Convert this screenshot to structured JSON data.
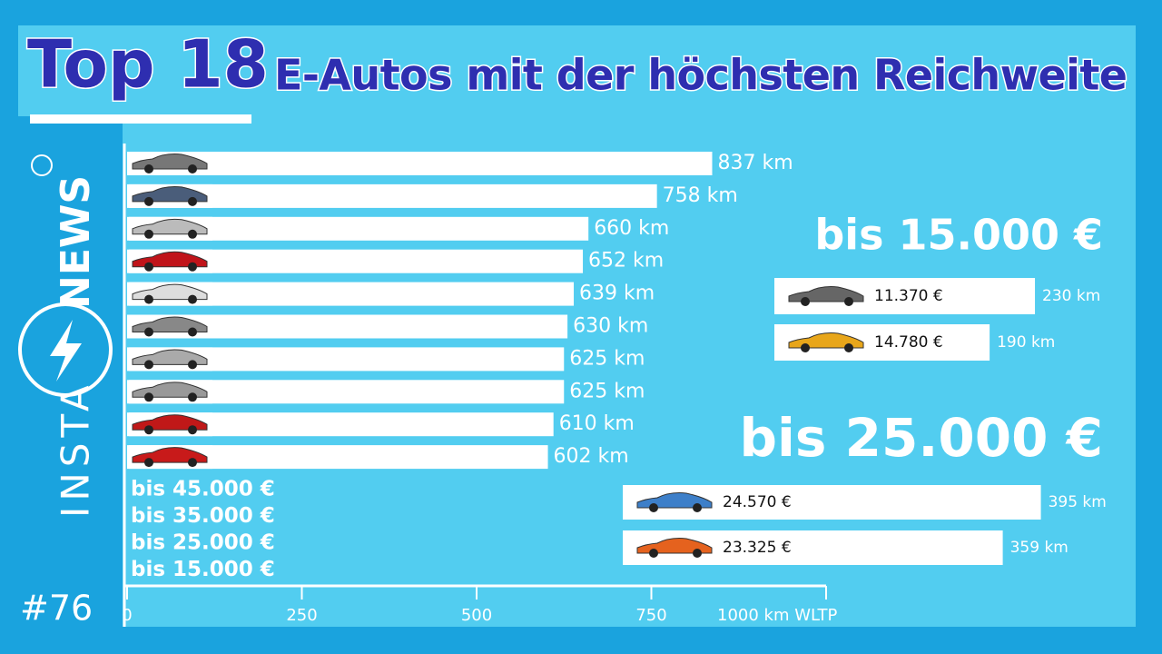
{
  "brand": {
    "name1": "INSTA",
    "name2": "NEWS",
    "episode": "#76"
  },
  "chart_data": {
    "type": "bar",
    "orientation": "horizontal",
    "title": "Top 18",
    "subtitle": "E-Autos mit der höchsten Reichweite",
    "values": [
      837,
      758,
      660,
      652,
      639,
      630,
      625,
      625,
      610,
      602
    ],
    "value_labels": [
      "837 km",
      "758 km",
      "660 km",
      "652 km",
      "639 km",
      "630 km",
      "625 km",
      "625 km",
      "610 km",
      "602 km"
    ],
    "color": "#ffffff",
    "xlim": [
      0,
      1000
    ],
    "xticks": [
      0,
      250,
      500,
      750,
      {
        "value": 1000,
        "label": "1000 km WLTP"
      }
    ],
    "price_classes": [
      "bis 45.000 €",
      "bis 35.000 €",
      "bis 25.000 €",
      "bis 15.000 €"
    ],
    "groups": [
      {
        "title": "bis 15.000 €",
        "prices": [
          "11.370 €",
          "14.780 €"
        ],
        "values": [
          230,
          190
        ],
        "value_labels": [
          "230 km",
          "190 km"
        ]
      },
      {
        "title": "bis 25.000 €",
        "prices": [
          "24.570 €",
          "23.325 €"
        ],
        "values": [
          395,
          359
        ],
        "value_labels": [
          "395 km",
          "359 km"
        ]
      }
    ]
  }
}
